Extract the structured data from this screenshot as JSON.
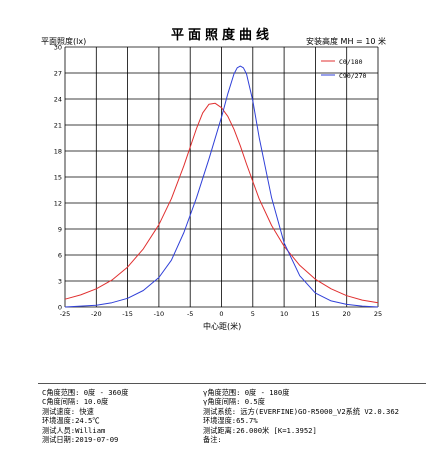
{
  "chart_data": {
    "type": "line",
    "title": "平面照度曲线",
    "ylabel": "平面照度(lx)",
    "xlabel": "中心距(米)",
    "height_label": "安装高度 MH = 10 米",
    "xlim": [
      -25,
      25
    ],
    "ylim": [
      0,
      30
    ],
    "x_ticks": [
      -25,
      -20,
      -15,
      -10,
      -5,
      0,
      5,
      10,
      15,
      20,
      25
    ],
    "y_ticks": [
      0,
      3,
      6,
      9,
      12,
      15,
      18,
      21,
      24,
      27,
      30
    ],
    "grid": true,
    "legend_position": "top-right",
    "series": [
      {
        "name": "C0/180",
        "color": "#e03030",
        "x": [
          -25,
          -22.5,
          -20,
          -17.5,
          -15,
          -12.5,
          -10,
          -8,
          -6,
          -4,
          -3,
          -2,
          -1,
          0,
          1,
          2,
          3,
          4,
          6,
          8,
          10,
          12.5,
          15,
          17.5,
          20,
          22.5,
          25
        ],
        "y": [
          0.9,
          1.4,
          2.1,
          3.1,
          4.6,
          6.7,
          9.5,
          12.5,
          16.3,
          20.6,
          22.4,
          23.4,
          23.5,
          23.0,
          22.0,
          20.5,
          18.6,
          16.5,
          12.5,
          9.4,
          7.0,
          4.8,
          3.2,
          2.1,
          1.3,
          0.8,
          0.5
        ]
      },
      {
        "name": "C90/270",
        "color": "#3040d8",
        "x": [
          -25,
          -22.5,
          -20,
          -17.5,
          -15,
          -12.5,
          -10,
          -8,
          -6,
          -4,
          -2,
          0,
          1,
          2,
          2.5,
          3,
          3.5,
          4,
          5,
          6,
          8,
          10,
          12.5,
          15,
          17.5,
          20,
          22.5,
          25
        ],
        "y": [
          0.0,
          0.1,
          0.2,
          0.5,
          1.0,
          1.9,
          3.4,
          5.4,
          8.6,
          12.6,
          17.1,
          21.9,
          24.6,
          26.9,
          27.6,
          27.8,
          27.6,
          26.9,
          23.8,
          19.6,
          12.6,
          7.4,
          3.6,
          1.6,
          0.7,
          0.3,
          0.1,
          0.0
        ]
      }
    ]
  },
  "info": {
    "left": [
      "C角度范围: 0度 - 360度",
      "C角度间隔: 10.0度",
      "测试速度: 快速",
      "环境温度:24.5℃",
      "测试人员:William",
      "测试日期:2019-07-09"
    ],
    "right": [
      "γ角度范围:  0度 - 180度",
      "γ角度间隔:  0.5度",
      "测试系统: 远方(EVERFINE)GO-R5000_V2系统 V2.0.362",
      "环境湿度:65.7%",
      "测试距离:26.000米 [K=1.3952]",
      "备注:"
    ]
  }
}
